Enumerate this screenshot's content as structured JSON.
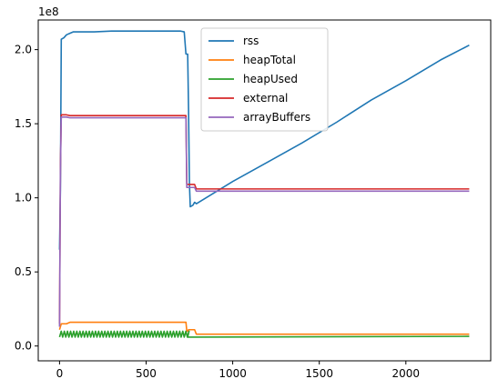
{
  "chart_data": {
    "type": "line",
    "title": "",
    "xlabel": "",
    "ylabel": "",
    "offset_text": "1e8",
    "xlim": [
      -123,
      2490
    ],
    "ylim": [
      -0.1,
      2.2
    ],
    "y_scale_label": "1e8",
    "x_ticks": [
      0,
      500,
      1000,
      1500,
      2000
    ],
    "x_tick_labels": [
      "0",
      "500",
      "1000",
      "1500",
      "2000"
    ],
    "y_ticks": [
      0.0,
      0.5,
      1.0,
      1.5,
      2.0
    ],
    "y_tick_labels": [
      "0.0",
      "0.5",
      "1.0",
      "1.5",
      "2.0"
    ],
    "grid": false,
    "legend_position": "top-center",
    "series": [
      {
        "name": "rss",
        "color": "#1f77b4",
        "points": [
          [
            0,
            0.65
          ],
          [
            5,
            1.05
          ],
          [
            10,
            2.07
          ],
          [
            25,
            2.08
          ],
          [
            40,
            2.1
          ],
          [
            60,
            2.11
          ],
          [
            80,
            2.12
          ],
          [
            200,
            2.12
          ],
          [
            300,
            2.125
          ],
          [
            500,
            2.125
          ],
          [
            700,
            2.125
          ],
          [
            720,
            2.12
          ],
          [
            730,
            1.97
          ],
          [
            740,
            1.97
          ],
          [
            745,
            1.6
          ],
          [
            750,
            1.1
          ],
          [
            755,
            0.94
          ],
          [
            770,
            0.95
          ],
          [
            780,
            0.97
          ],
          [
            790,
            0.96
          ],
          [
            1000,
            1.11
          ],
          [
            1200,
            1.24
          ],
          [
            1400,
            1.37
          ],
          [
            1600,
            1.51
          ],
          [
            1800,
            1.66
          ],
          [
            2000,
            1.79
          ],
          [
            2200,
            1.93
          ],
          [
            2366,
            2.03
          ]
        ]
      },
      {
        "name": "heapTotal",
        "color": "#ff7f0e",
        "points": [
          [
            0,
            0.11
          ],
          [
            10,
            0.15
          ],
          [
            40,
            0.15
          ],
          [
            60,
            0.16
          ],
          [
            730,
            0.16
          ],
          [
            735,
            0.1
          ],
          [
            740,
            0.1
          ],
          [
            745,
            0.11
          ],
          [
            780,
            0.11
          ],
          [
            790,
            0.08
          ],
          [
            2366,
            0.08
          ]
        ]
      },
      {
        "name": "heapUsed",
        "color": "#2ca02c",
        "wave": {
          "x_start": 0,
          "x_end": 740,
          "period": 18,
          "low": 0.06,
          "high": 0.1
        },
        "points": [
          [
            740,
            0.06
          ],
          [
            2366,
            0.065
          ]
        ]
      },
      {
        "name": "external",
        "color": "#d62728",
        "points": [
          [
            0,
            0.15
          ],
          [
            5,
            1.2
          ],
          [
            10,
            1.56
          ],
          [
            40,
            1.56
          ],
          [
            60,
            1.555
          ],
          [
            730,
            1.555
          ],
          [
            735,
            1.09
          ],
          [
            780,
            1.09
          ],
          [
            790,
            1.06
          ],
          [
            2366,
            1.06
          ]
        ]
      },
      {
        "name": "arrayBuffers",
        "color": "#9467bd",
        "points": [
          [
            0,
            0.13
          ],
          [
            5,
            1.18
          ],
          [
            10,
            1.545
          ],
          [
            40,
            1.545
          ],
          [
            60,
            1.54
          ],
          [
            730,
            1.54
          ],
          [
            735,
            1.07
          ],
          [
            780,
            1.07
          ],
          [
            790,
            1.045
          ],
          [
            2366,
            1.045
          ]
        ]
      }
    ]
  }
}
